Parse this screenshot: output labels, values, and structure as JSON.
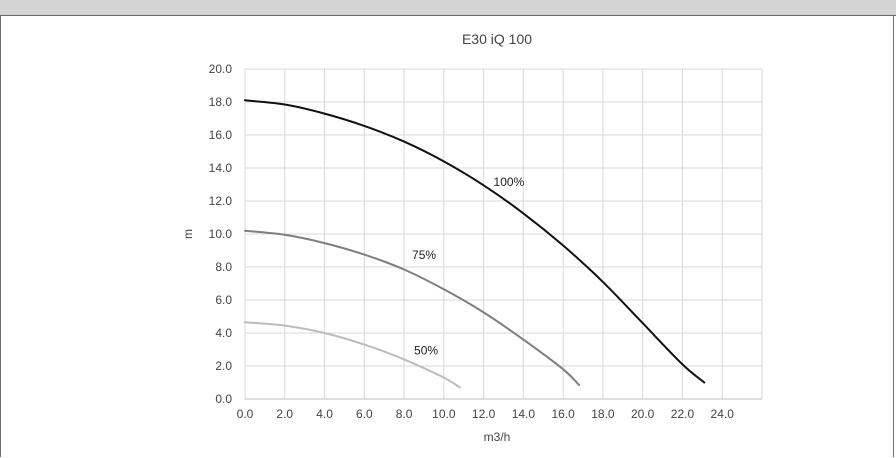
{
  "window": {
    "title": ""
  },
  "chart_data": {
    "type": "line",
    "title": "E30 iQ 100",
    "xlabel": "m3/h",
    "ylabel": "m",
    "xlim": [
      0,
      26
    ],
    "ylim": [
      0,
      20
    ],
    "x_ticks": [
      "0.0",
      "2.0",
      "4.0",
      "6.0",
      "8.0",
      "10.0",
      "12.0",
      "14.0",
      "16.0",
      "18.0",
      "20.0",
      "22.0",
      "24.0"
    ],
    "y_ticks": [
      "0.0",
      "2.0",
      "4.0",
      "6.0",
      "8.0",
      "10.0",
      "12.0",
      "14.0",
      "16.0",
      "18.0",
      "20.0"
    ],
    "grid": true,
    "legend": "none",
    "series": [
      {
        "name": "100%",
        "color": "#111111",
        "x": [
          0,
          2,
          4,
          6,
          8,
          10,
          12,
          14,
          16,
          18,
          20,
          22,
          23.1
        ],
        "y": [
          18.1,
          17.85,
          17.3,
          16.55,
          15.6,
          14.4,
          12.95,
          11.25,
          9.3,
          7.1,
          4.6,
          2.1,
          1.0
        ],
        "label_at": [
          12.5,
          12.9
        ]
      },
      {
        "name": "75%",
        "color": "#7f7f7f",
        "x": [
          0,
          2,
          4,
          6,
          8,
          10,
          12,
          14,
          16,
          16.8
        ],
        "y": [
          10.2,
          9.95,
          9.45,
          8.75,
          7.85,
          6.65,
          5.25,
          3.6,
          1.8,
          0.85
        ],
        "label_at": [
          8.4,
          8.5
        ]
      },
      {
        "name": "50%",
        "color": "#bcbcbc",
        "x": [
          0,
          2,
          4,
          6,
          8,
          10,
          10.8
        ],
        "y": [
          4.65,
          4.45,
          4.0,
          3.3,
          2.4,
          1.3,
          0.7
        ],
        "label_at": [
          8.5,
          2.7
        ]
      }
    ]
  }
}
